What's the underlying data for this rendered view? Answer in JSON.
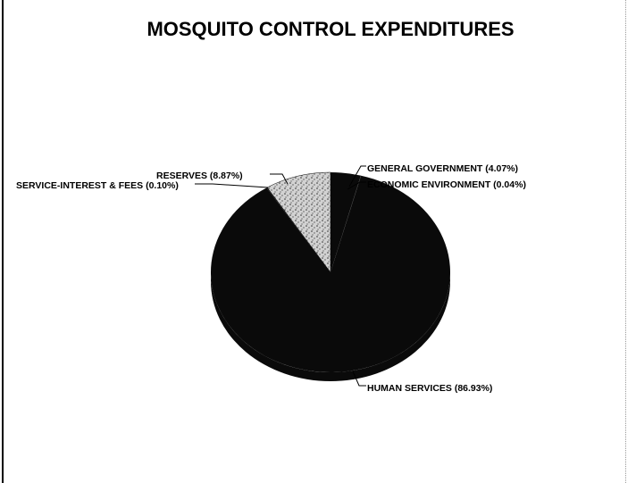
{
  "chart_data": {
    "type": "pie",
    "title": "MOSQUITO CONTROL EXPENDITURES",
    "slices": [
      {
        "label": "GENERAL GOVERNMENT (4.07%)",
        "value": 4.07
      },
      {
        "label": "ECONOMIC ENVIRONMENT (0.04%)",
        "value": 0.04
      },
      {
        "label": "HUMAN SERVICES (86.93%)",
        "value": 86.93
      },
      {
        "label": "SERVICE-INTEREST & FEES (0.10%)",
        "value": 0.1
      },
      {
        "label": "RESERVES (8.87%)",
        "value": 8.87
      }
    ],
    "colors": {
      "main": "#0a0a0a",
      "reserves": "#c8c8c8",
      "dots": "#3a3a3a"
    }
  }
}
